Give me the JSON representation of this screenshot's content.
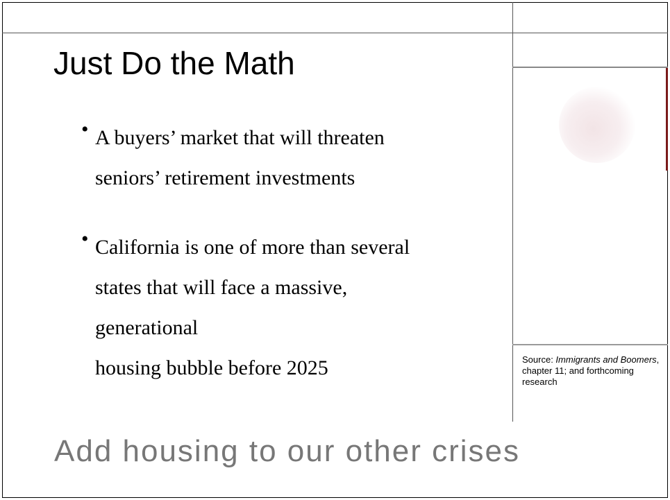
{
  "title": "Just Do the Math",
  "bullets": [
    {
      "lines": [
        "A buyers’ market that will threaten",
        "seniors’ retirement investments"
      ]
    },
    {
      "lines": [
        "California is one of more than several",
        "states that will face a massive,",
        "generational",
        "housing bubble before 2025"
      ]
    }
  ],
  "source": {
    "prefix": "Source: ",
    "book": "Immigrants and Boomers",
    "suffix": ", chapter 11; and forthcoming research"
  },
  "footer": "Add housing to our other crises"
}
